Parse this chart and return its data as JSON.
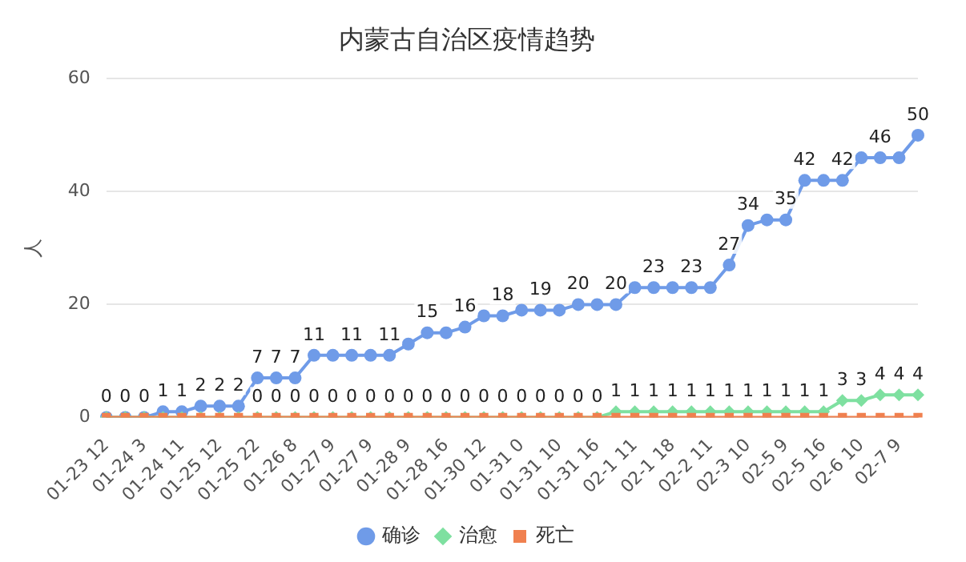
{
  "chart_data": {
    "type": "line",
    "title": "内蒙古自治区疫情趋势",
    "ylabel": "人",
    "categories": [
      "01-23 12",
      null,
      "01-24 3",
      null,
      "01-24 11",
      null,
      "01-25 12",
      null,
      "01-25 22",
      null,
      "01-26 8",
      null,
      "01-27 9",
      null,
      "01-27 9",
      null,
      "01-28 9",
      null,
      "01-28 16",
      null,
      "01-30 12",
      null,
      "01-31 0",
      null,
      "01-31 10",
      null,
      "01-31 16",
      null,
      "02-1 11",
      null,
      "02-1 18",
      null,
      "02-2 11",
      null,
      "02-3 10",
      null,
      "02-5 9",
      null,
      "02-5 16",
      null,
      "02-6 10",
      null,
      "02-7 9",
      null
    ],
    "series": [
      {
        "name": "确诊",
        "color": "#6f9be8",
        "marker": "circle",
        "values": [
          0,
          0,
          0,
          1,
          1,
          2,
          2,
          2,
          7,
          7,
          7,
          11,
          11,
          11,
          11,
          11,
          13,
          15,
          15,
          16,
          18,
          18,
          19,
          19,
          19,
          20,
          20,
          20,
          23,
          23,
          23,
          23,
          23,
          27,
          34,
          35,
          35,
          42,
          42,
          42,
          46,
          46,
          46,
          50
        ],
        "value_labels": [
          "0",
          "0",
          "0",
          "1",
          "1",
          "2",
          "2",
          "2",
          "7",
          "7",
          "7",
          "11",
          null,
          "11",
          null,
          "11",
          null,
          "15",
          null,
          "16",
          null,
          "18",
          null,
          "19",
          null,
          "20",
          null,
          "20",
          null,
          "23",
          null,
          "23",
          null,
          "27",
          "34",
          null,
          "35",
          "42",
          null,
          "42",
          null,
          "46",
          null,
          "50"
        ]
      },
      {
        "name": "治愈",
        "color": "#7ee0a0",
        "marker": "diamond",
        "values": [
          0,
          0,
          0,
          0,
          0,
          0,
          0,
          0,
          0,
          0,
          0,
          0,
          0,
          0,
          0,
          0,
          0,
          0,
          0,
          0,
          0,
          0,
          0,
          0,
          0,
          0,
          0,
          1,
          1,
          1,
          1,
          1,
          1,
          1,
          1,
          1,
          1,
          1,
          1,
          3,
          3,
          4,
          4,
          4
        ],
        "value_labels": [
          null,
          null,
          null,
          null,
          null,
          null,
          null,
          null,
          "0",
          "0",
          "0",
          "0",
          "0",
          "0",
          "0",
          "0",
          "0",
          "0",
          "0",
          "0",
          "0",
          "0",
          "0",
          "0",
          "0",
          "0",
          "0",
          "1",
          "1",
          "1",
          "1",
          "1",
          "1",
          "1",
          "1",
          "1",
          "1",
          "1",
          "1",
          "3",
          "3",
          "4",
          "4",
          "4"
        ]
      },
      {
        "name": "死亡",
        "color": "#f0804f",
        "marker": "square",
        "values": [
          0,
          0,
          0,
          0,
          0,
          0,
          0,
          0,
          0,
          0,
          0,
          0,
          0,
          0,
          0,
          0,
          0,
          0,
          0,
          0,
          0,
          0,
          0,
          0,
          0,
          0,
          0,
          0,
          0,
          0,
          0,
          0,
          0,
          0,
          0,
          0,
          0,
          0,
          0,
          0,
          0,
          0,
          0,
          0
        ]
      }
    ],
    "ylim": [
      0,
      60
    ],
    "yticks": [
      0,
      20,
      40,
      60
    ],
    "grid": "y",
    "legend": "bottom",
    "line_style": "solid"
  }
}
